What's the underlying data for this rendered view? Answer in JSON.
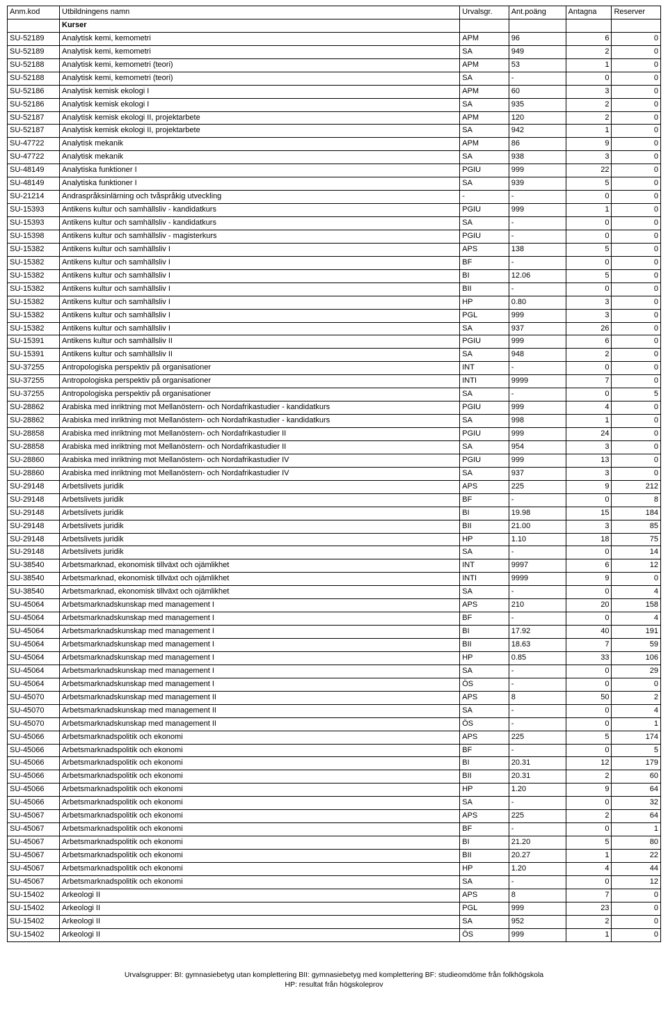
{
  "headers": {
    "code": "Anm.kod",
    "name": "Utbildningens namn",
    "urvalsgr": "Urvalsgr.",
    "poang": "Ant.poäng",
    "antagna": "Antagna",
    "reserver": "Reserver"
  },
  "section_label": "Kurser",
  "footer_line1": "Urvalsgrupper:  BI: gymnasiebetyg utan komplettering   BII: gymnasiebetyg med komplettering   BF: studieomdöme från folkhögskola",
  "footer_line2": "HP: resultat från högskoleprov",
  "rows": [
    [
      "SU-52189",
      "Analytisk kemi, kemometri",
      "APM",
      "96",
      "6",
      "0"
    ],
    [
      "SU-52189",
      "Analytisk kemi, kemometri",
      "SA",
      "949",
      "2",
      "0"
    ],
    [
      "SU-52188",
      "Analytisk kemi, kemometri (teori)",
      "APM",
      "53",
      "1",
      "0"
    ],
    [
      "SU-52188",
      "Analytisk kemi, kemometri (teori)",
      "SA",
      "-",
      "0",
      "0"
    ],
    [
      "SU-52186",
      "Analytisk kemisk ekologi I",
      "APM",
      "60",
      "3",
      "0"
    ],
    [
      "SU-52186",
      "Analytisk kemisk ekologi I",
      "SA",
      "935",
      "2",
      "0"
    ],
    [
      "SU-52187",
      "Analytisk kemisk ekologi II, projektarbete",
      "APM",
      "120",
      "2",
      "0"
    ],
    [
      "SU-52187",
      "Analytisk kemisk ekologi II, projektarbete",
      "SA",
      "942",
      "1",
      "0"
    ],
    [
      "SU-47722",
      "Analytisk mekanik",
      "APM",
      "86",
      "9",
      "0"
    ],
    [
      "SU-47722",
      "Analytisk mekanik",
      "SA",
      "938",
      "3",
      "0"
    ],
    [
      "SU-48149",
      "Analytiska funktioner I",
      "PGIU",
      "999",
      "22",
      "0"
    ],
    [
      "SU-48149",
      "Analytiska funktioner I",
      "SA",
      "939",
      "5",
      "0"
    ],
    [
      "SU-21214",
      "Andraspråksinlärning och tvåspråkig utveckling",
      "-",
      "-",
      "0",
      "0"
    ],
    [
      "SU-15393",
      "Antikens kultur och samhällsliv - kandidatkurs",
      "PGIU",
      "999",
      "1",
      "0"
    ],
    [
      "SU-15393",
      "Antikens kultur och samhällsliv - kandidatkurs",
      "SA",
      "-",
      "0",
      "0"
    ],
    [
      "SU-15398",
      "Antikens kultur och samhällsliv - magisterkurs",
      "PGIU",
      "-",
      "0",
      "0"
    ],
    [
      "SU-15382",
      "Antikens kultur och samhällsliv I",
      "APS",
      "138",
      "5",
      "0"
    ],
    [
      "SU-15382",
      "Antikens kultur och samhällsliv I",
      "BF",
      "-",
      "0",
      "0"
    ],
    [
      "SU-15382",
      "Antikens kultur och samhällsliv I",
      "BI",
      "12.06",
      "5",
      "0"
    ],
    [
      "SU-15382",
      "Antikens kultur och samhällsliv I",
      "BII",
      "-",
      "0",
      "0"
    ],
    [
      "SU-15382",
      "Antikens kultur och samhällsliv I",
      "HP",
      "0.80",
      "3",
      "0"
    ],
    [
      "SU-15382",
      "Antikens kultur och samhällsliv I",
      "PGL",
      "999",
      "3",
      "0"
    ],
    [
      "SU-15382",
      "Antikens kultur och samhällsliv I",
      "SA",
      "937",
      "26",
      "0"
    ],
    [
      "SU-15391",
      "Antikens kultur och samhällsliv II",
      "PGIU",
      "999",
      "6",
      "0"
    ],
    [
      "SU-15391",
      "Antikens kultur och samhällsliv II",
      "SA",
      "948",
      "2",
      "0"
    ],
    [
      "SU-37255",
      "Antropologiska perspektiv på organisationer",
      "INT",
      "-",
      "0",
      "0"
    ],
    [
      "SU-37255",
      "Antropologiska perspektiv på organisationer",
      "INTI",
      "9999",
      "7",
      "0"
    ],
    [
      "SU-37255",
      "Antropologiska perspektiv på organisationer",
      "SA",
      "-",
      "0",
      "5"
    ],
    [
      "SU-28862",
      "Arabiska med inriktning mot Mellanöstern- och Nordafrikastudier - kandidatkurs",
      "PGIU",
      "999",
      "4",
      "0"
    ],
    [
      "SU-28862",
      "Arabiska med inriktning mot Mellanöstern- och Nordafrikastudier - kandidatkurs",
      "SA",
      "998",
      "1",
      "0"
    ],
    [
      "SU-28858",
      "Arabiska med inriktning mot Mellanöstern- och Nordafrikastudier II",
      "PGIU",
      "999",
      "24",
      "0"
    ],
    [
      "SU-28858",
      "Arabiska med inriktning mot Mellanöstern- och Nordafrikastudier II",
      "SA",
      "954",
      "3",
      "0"
    ],
    [
      "SU-28860",
      "Arabiska med inriktning mot Mellanöstern- och Nordafrikastudier IV",
      "PGIU",
      "999",
      "13",
      "0"
    ],
    [
      "SU-28860",
      "Arabiska med inriktning mot Mellanöstern- och Nordafrikastudier IV",
      "SA",
      "937",
      "3",
      "0"
    ],
    [
      "SU-29148",
      "Arbetslivets juridik",
      "APS",
      "225",
      "9",
      "212"
    ],
    [
      "SU-29148",
      "Arbetslivets juridik",
      "BF",
      "-",
      "0",
      "8"
    ],
    [
      "SU-29148",
      "Arbetslivets juridik",
      "BI",
      "19.98",
      "15",
      "184"
    ],
    [
      "SU-29148",
      "Arbetslivets juridik",
      "BII",
      "21.00",
      "3",
      "85"
    ],
    [
      "SU-29148",
      "Arbetslivets juridik",
      "HP",
      "1.10",
      "18",
      "75"
    ],
    [
      "SU-29148",
      "Arbetslivets juridik",
      "SA",
      "-",
      "0",
      "14"
    ],
    [
      "SU-38540",
      "Arbetsmarknad, ekonomisk tillväxt och ojämlikhet",
      "INT",
      "9997",
      "6",
      "12"
    ],
    [
      "SU-38540",
      "Arbetsmarknad, ekonomisk tillväxt och ojämlikhet",
      "INTI",
      "9999",
      "9",
      "0"
    ],
    [
      "SU-38540",
      "Arbetsmarknad, ekonomisk tillväxt och ojämlikhet",
      "SA",
      "-",
      "0",
      "4"
    ],
    [
      "SU-45064",
      "Arbetsmarknadskunskap med management I",
      "APS",
      "210",
      "20",
      "158"
    ],
    [
      "SU-45064",
      "Arbetsmarknadskunskap med management I",
      "BF",
      "-",
      "0",
      "4"
    ],
    [
      "SU-45064",
      "Arbetsmarknadskunskap med management I",
      "BI",
      "17.92",
      "40",
      "191"
    ],
    [
      "SU-45064",
      "Arbetsmarknadskunskap med management I",
      "BII",
      "18.63",
      "7",
      "59"
    ],
    [
      "SU-45064",
      "Arbetsmarknadskunskap med management I",
      "HP",
      "0.85",
      "33",
      "106"
    ],
    [
      "SU-45064",
      "Arbetsmarknadskunskap med management I",
      "SA",
      "-",
      "0",
      "29"
    ],
    [
      "SU-45064",
      "Arbetsmarknadskunskap med management I",
      "ÖS",
      "-",
      "0",
      "0"
    ],
    [
      "SU-45070",
      "Arbetsmarknadskunskap med management II",
      "APS",
      "8",
      "50",
      "2"
    ],
    [
      "SU-45070",
      "Arbetsmarknadskunskap med management II",
      "SA",
      "-",
      "0",
      "4"
    ],
    [
      "SU-45070",
      "Arbetsmarknadskunskap med management II",
      "ÖS",
      "-",
      "0",
      "1"
    ],
    [
      "SU-45066",
      "Arbetsmarknadspolitik och ekonomi",
      "APS",
      "225",
      "5",
      "174"
    ],
    [
      "SU-45066",
      "Arbetsmarknadspolitik och ekonomi",
      "BF",
      "-",
      "0",
      "5"
    ],
    [
      "SU-45066",
      "Arbetsmarknadspolitik och ekonomi",
      "BI",
      "20.31",
      "12",
      "179"
    ],
    [
      "SU-45066",
      "Arbetsmarknadspolitik och ekonomi",
      "BII",
      "20.31",
      "2",
      "60"
    ],
    [
      "SU-45066",
      "Arbetsmarknadspolitik och ekonomi",
      "HP",
      "1.20",
      "9",
      "64"
    ],
    [
      "SU-45066",
      "Arbetsmarknadspolitik och ekonomi",
      "SA",
      "-",
      "0",
      "32"
    ],
    [
      "SU-45067",
      "Arbetsmarknadspolitik och ekonomi",
      "APS",
      "225",
      "2",
      "64"
    ],
    [
      "SU-45067",
      "Arbetsmarknadspolitik och ekonomi",
      "BF",
      "-",
      "0",
      "1"
    ],
    [
      "SU-45067",
      "Arbetsmarknadspolitik och ekonomi",
      "BI",
      "21.20",
      "5",
      "80"
    ],
    [
      "SU-45067",
      "Arbetsmarknadspolitik och ekonomi",
      "BII",
      "20.27",
      "1",
      "22"
    ],
    [
      "SU-45067",
      "Arbetsmarknadspolitik och ekonomi",
      "HP",
      "1.20",
      "4",
      "44"
    ],
    [
      "SU-45067",
      "Arbetsmarknadspolitik och ekonomi",
      "SA",
      "-",
      "0",
      "12"
    ],
    [
      "SU-15402",
      "Arkeologi II",
      "APS",
      "8",
      "7",
      "0"
    ],
    [
      "SU-15402",
      "Arkeologi II",
      "PGL",
      "999",
      "23",
      "0"
    ],
    [
      "SU-15402",
      "Arkeologi II",
      "SA",
      "952",
      "2",
      "0"
    ],
    [
      "SU-15402",
      "Arkeologi II",
      "ÖS",
      "999",
      "1",
      "0"
    ]
  ]
}
